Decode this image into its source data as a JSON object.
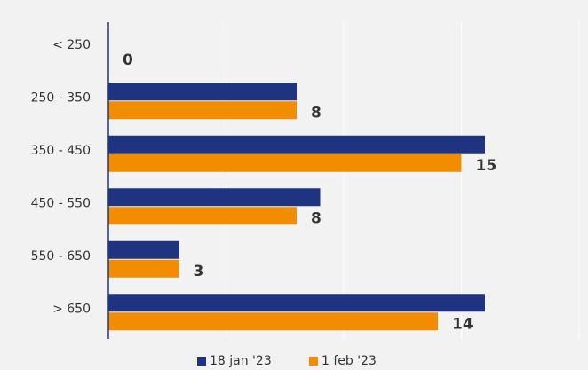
{
  "chart_data": {
    "type": "barh",
    "categories": [
      "< 250",
      "250 - 350",
      "350 - 450",
      "450 - 550",
      "550 - 650",
      "> 650"
    ],
    "series": [
      {
        "name": "18 jan '23",
        "color": "#1f3480",
        "values": [
          0,
          8,
          16,
          9,
          3,
          16
        ]
      },
      {
        "name": "1 feb '23",
        "color": "#f28c00",
        "values": [
          0,
          8,
          15,
          8,
          3,
          14
        ],
        "data_labels": true
      }
    ],
    "xlim": [
      0,
      20
    ],
    "xticks": [
      0,
      5,
      10,
      15,
      20
    ],
    "grid": true,
    "legend": "bottom"
  }
}
